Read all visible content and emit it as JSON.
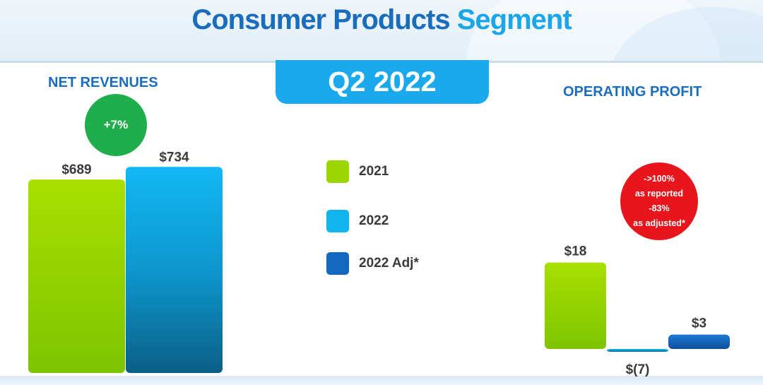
{
  "title": {
    "main": "Consumer Products",
    "highlight": "Segment"
  },
  "period": "Q2 2022",
  "colors": {
    "c2021": "#9bd600",
    "c2022": "#10b4ef",
    "c2022adj": "#1568bf",
    "title": "#1a6dbd",
    "badge_green": "#1fae4b",
    "badge_red": "#e8161c"
  },
  "legend": [
    {
      "label": "2021",
      "color": "#9bd600"
    },
    {
      "label": "2022",
      "color": "#10b4ef"
    },
    {
      "label": "2022 Adj*",
      "color": "#1568bf"
    }
  ],
  "net_revenues_badge": "+7%",
  "operating_profit_badge": [
    "->100%",
    "as reported",
    "-83%",
    "as adjusted*"
  ],
  "chart_data": [
    {
      "type": "bar",
      "title": "NET REVENUES",
      "categories": [
        "2021",
        "2022"
      ],
      "values": [
        689,
        734
      ],
      "labels": [
        "$689",
        "$734"
      ],
      "ylim": [
        0,
        780
      ]
    },
    {
      "type": "bar",
      "title": "OPERATING PROFIT",
      "categories": [
        "2021",
        "2022",
        "2022 Adj*"
      ],
      "values": [
        18,
        -7,
        3
      ],
      "labels": [
        "$18",
        "$(7)",
        "$3"
      ],
      "ylim": [
        -10,
        20
      ]
    }
  ]
}
